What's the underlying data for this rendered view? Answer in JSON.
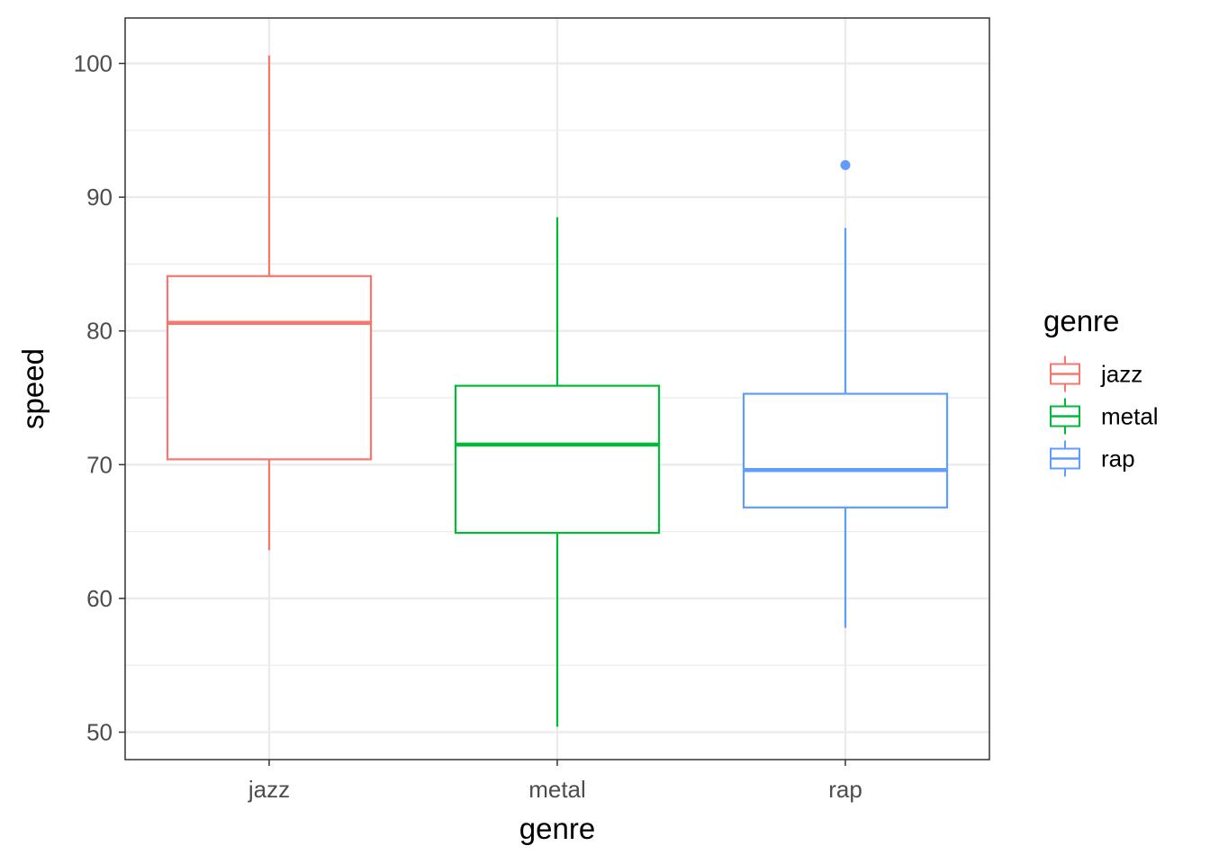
{
  "chart_data": {
    "type": "boxplot",
    "xlabel": "genre",
    "ylabel": "speed",
    "ylim": [
      48,
      103
    ],
    "y_ticks": [
      "50",
      "60",
      "70",
      "80",
      "90",
      "100"
    ],
    "y_tick_values": [
      50,
      60,
      70,
      80,
      90,
      100
    ],
    "y_minor_values": [
      55,
      65,
      75,
      85,
      95
    ],
    "grid": true,
    "legend": {
      "title": "genre",
      "position": "right"
    },
    "categories": [
      "jazz",
      "metal",
      "rap"
    ],
    "series": [
      {
        "name": "jazz",
        "color": "#F8766D",
        "whisker_low": 63.6,
        "q1": 70.4,
        "median": 80.6,
        "q3": 84.1,
        "whisker_high": 100.6,
        "outliers": []
      },
      {
        "name": "metal",
        "color": "#00BA38",
        "whisker_low": 50.4,
        "q1": 64.9,
        "median": 71.5,
        "q3": 75.9,
        "whisker_high": 88.5,
        "outliers": []
      },
      {
        "name": "rap",
        "color": "#619CFF",
        "whisker_low": 57.8,
        "q1": 66.8,
        "median": 69.6,
        "q3": 75.3,
        "whisker_high": 87.7,
        "outliers": [
          92.4
        ]
      }
    ]
  }
}
